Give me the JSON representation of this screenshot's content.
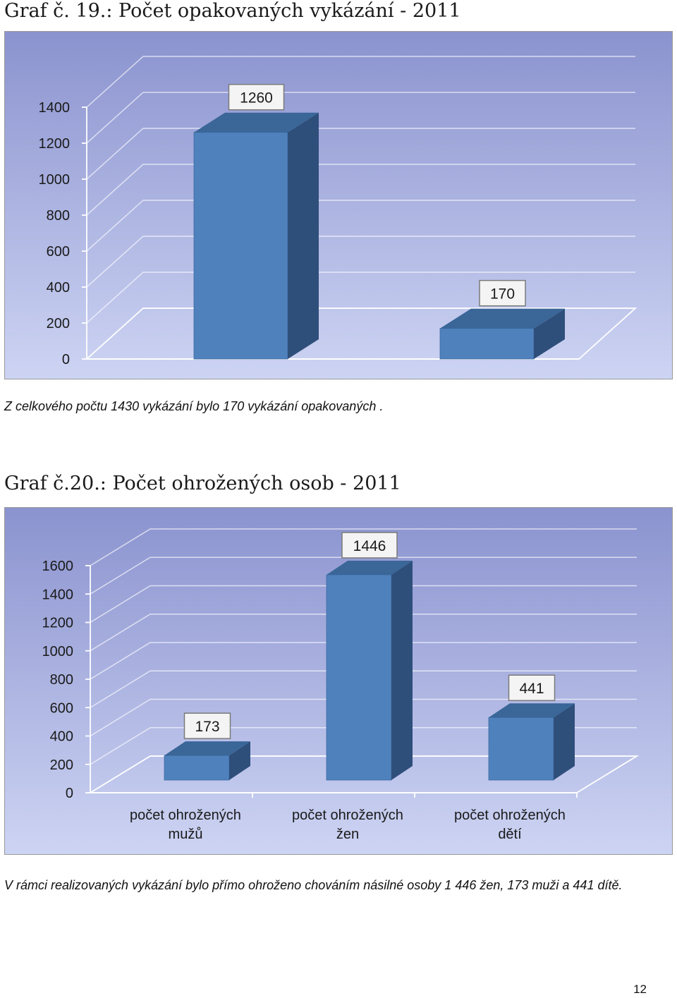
{
  "chart1": {
    "heading": "Graf č. 19.: Počet opakovaných vykázání - 2011",
    "caption": "Z celkového počtu 1430 vykázání bylo 170 vykázání opakovaných .",
    "chart_data": {
      "type": "bar",
      "title": "",
      "xlabel": "",
      "ylabel": "",
      "categories": [
        "",
        ""
      ],
      "values": [
        1260,
        170
      ],
      "value_labels": [
        "1260",
        "170"
      ],
      "ylim": [
        0,
        1400
      ],
      "yticks": [
        0,
        200,
        400,
        600,
        800,
        1000,
        1200,
        1400
      ],
      "grid": true,
      "colors": {
        "bar": "#4f81bd",
        "bar_side": "#2f4f7b",
        "bar_top": "#3a6698",
        "bg_top": "#8b93cf",
        "bg_bottom": "#cdd4f3"
      }
    }
  },
  "chart2": {
    "heading": "Graf č.20.: Počet ohrožených osob - 2011",
    "caption": "V rámci realizovaných vykázání bylo přímo ohroženo chováním násilné osoby 1 446 žen, 173 muži a 441 dítě.",
    "chart_data": {
      "type": "bar",
      "title": "",
      "xlabel": "",
      "ylabel": "",
      "categories": [
        "počet ohrožených mužů",
        "počet ohrožených žen",
        "počet ohrožených dětí"
      ],
      "category_lines": [
        [
          "počet ohrožených",
          "mužů"
        ],
        [
          "počet ohrožených",
          "žen"
        ],
        [
          "počet ohrožených",
          "dětí"
        ]
      ],
      "values": [
        173,
        1446,
        441
      ],
      "value_labels": [
        "173",
        "1446",
        "441"
      ],
      "ylim": [
        0,
        1600
      ],
      "yticks": [
        0,
        200,
        400,
        600,
        800,
        1000,
        1200,
        1400,
        1600
      ],
      "grid": true,
      "colors": {
        "bar": "#4f81bd",
        "bar_side": "#2f4f7b",
        "bar_top": "#3a6698",
        "bg_top": "#8b93cf",
        "bg_bottom": "#cdd4f3"
      }
    }
  },
  "page_number": "12"
}
